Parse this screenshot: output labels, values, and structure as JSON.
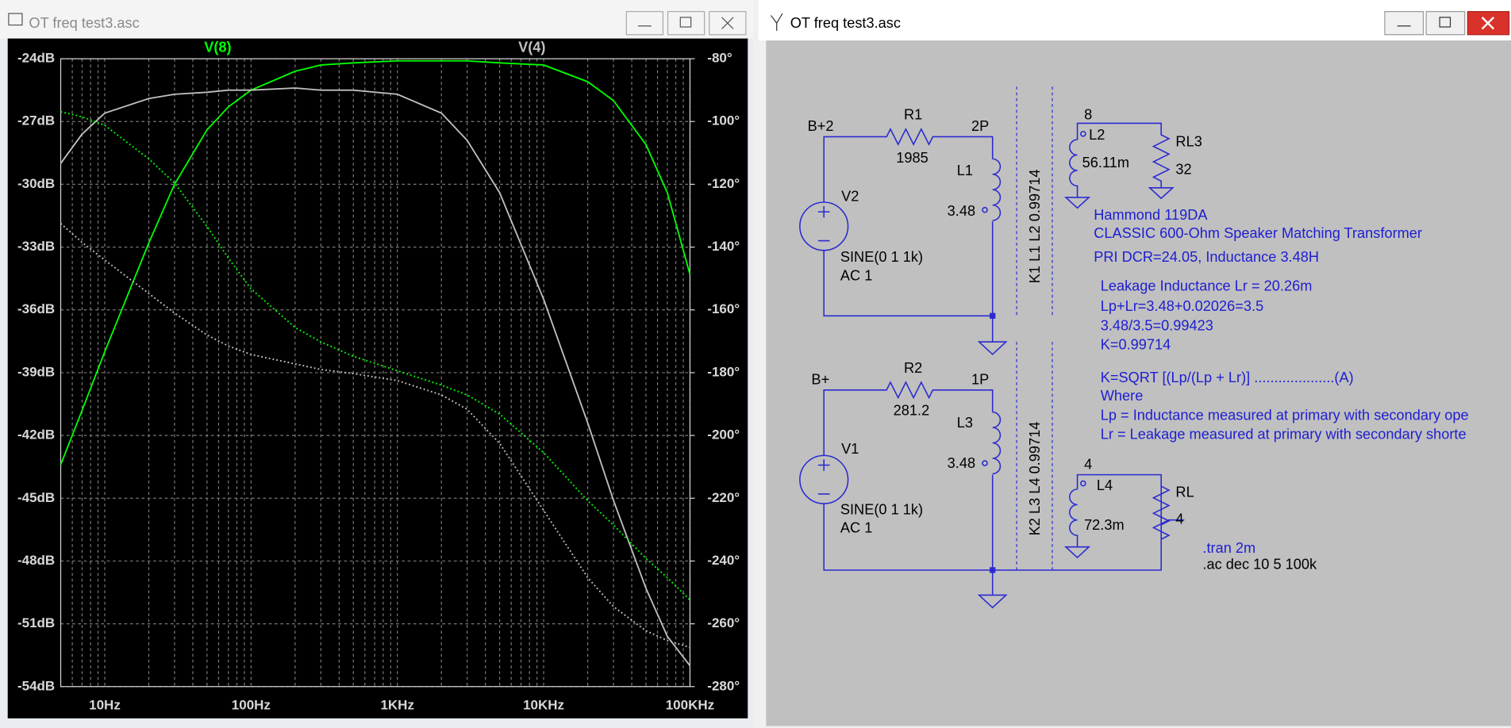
{
  "plot_window": {
    "title": "OT freq test3.asc"
  },
  "chart_data": {
    "type": "line",
    "x": [
      5,
      7,
      10,
      20,
      30,
      50,
      70,
      100,
      200,
      300,
      500,
      1000,
      2000,
      3000,
      5000,
      10000,
      20000,
      30000,
      50000,
      70000,
      100000
    ],
    "xlim": [
      5,
      100000
    ],
    "log_x": true,
    "xticks": [
      {
        "value": 10,
        "label": "10Hz"
      },
      {
        "value": 100,
        "label": "100Hz"
      },
      {
        "value": 1000,
        "label": "1KHz"
      },
      {
        "value": 10000,
        "label": "10KHz"
      },
      {
        "value": 100000,
        "label": "100KHz"
      }
    ],
    "ylim": [
      -54,
      -24
    ],
    "yticks": [
      {
        "value": -24,
        "label": "-24dB"
      },
      {
        "value": -27,
        "label": "-27dB"
      },
      {
        "value": -30,
        "label": "-30dB"
      },
      {
        "value": -33,
        "label": "-33dB"
      },
      {
        "value": -36,
        "label": "-36dB"
      },
      {
        "value": -39,
        "label": "-39dB"
      },
      {
        "value": -42,
        "label": "-42dB"
      },
      {
        "value": -45,
        "label": "-45dB"
      },
      {
        "value": -48,
        "label": "-48dB"
      },
      {
        "value": -51,
        "label": "-51dB"
      },
      {
        "value": -54,
        "label": "-54dB"
      }
    ],
    "y2lim": [
      -280,
      -80
    ],
    "y2ticks": [
      {
        "value": -80,
        "label": "-80°"
      },
      {
        "value": -100,
        "label": "-100°"
      },
      {
        "value": -120,
        "label": "-120°"
      },
      {
        "value": -140,
        "label": "-140°"
      },
      {
        "value": -160,
        "label": "-160°"
      },
      {
        "value": -180,
        "label": "-180°"
      },
      {
        "value": -200,
        "label": "-200°"
      },
      {
        "value": -220,
        "label": "-220°"
      },
      {
        "value": -240,
        "label": "-240°"
      },
      {
        "value": -260,
        "label": "-260°"
      },
      {
        "value": -280,
        "label": "-280°"
      }
    ],
    "grid": true,
    "series": [
      {
        "name": "V(8)",
        "color": "#00ff00",
        "values": [
          -43.4,
          -40.8,
          -38.0,
          -32.8,
          -30.0,
          -27.4,
          -26.3,
          -25.5,
          -24.6,
          -24.3,
          -24.2,
          -24.1,
          -24.1,
          -24.1,
          -24.2,
          -24.3,
          -25.1,
          -26.0,
          -28.1,
          -30.4,
          -34.3
        ]
      },
      {
        "name": "V(4)",
        "color": "#c0c0c0",
        "values": [
          -29.0,
          -27.6,
          -26.6,
          -25.9,
          -25.7,
          -25.6,
          -25.5,
          -25.5,
          -25.4,
          -25.5,
          -25.5,
          -25.7,
          -26.6,
          -27.9,
          -30.4,
          -35.5,
          -41.4,
          -45.1,
          -49.3,
          -51.6,
          -53.0
        ]
      },
      {
        "color": "#00ff00",
        "axis": "y2",
        "line_style": "dotted",
        "values": [
          -96.9,
          -98.5,
          -101.2,
          -111.9,
          -119.6,
          -133.4,
          -143.5,
          -153.3,
          -165.6,
          -170.2,
          -174.8,
          -179.4,
          -184.0,
          -187.1,
          -193.2,
          -205.5,
          -220.8,
          -228.5,
          -239.2,
          -245.3,
          -252.4
        ]
      },
      {
        "color": "#c0c0c0",
        "axis": "y2",
        "line_style": "dotted",
        "values": [
          -132.5,
          -138.5,
          -144.1,
          -154.8,
          -161.0,
          -168.0,
          -171.5,
          -174.2,
          -177.2,
          -179.0,
          -180.3,
          -182.5,
          -187.1,
          -191.7,
          -202.5,
          -223.9,
          -245.3,
          -254.5,
          -262.2,
          -265.3,
          -267.5
        ]
      }
    ]
  },
  "schematic_window": {
    "title": "OT freq test3.asc",
    "texts": [
      "B+2",
      "R1",
      "1985",
      "2P",
      "L1",
      "3.48",
      "V2",
      "SINE(0 1 1k)",
      "AC 1",
      "K1 L1 L2 0.99714",
      "8",
      "L2",
      "56.11m",
      "RL3",
      "32",
      "Hammond 119DA",
      "CLASSIC 600-Ohm Speaker Matching Transformer",
      "PRI DCR=24.05, Inductance 3.48H",
      "Leakage Inductance Lr = 20.26m",
      "Lp+Lr=3.48+0.02026=3.5",
      "3.48/3.5=0.99423",
      "K=0.99714",
      "K=SQRT [(Lp/(Lp + Lr)] ....................(A)",
      "Where",
      "Lp = Inductance measured at primary with secondary ope",
      "Lr = Leakage measured at primary with secondary shorte",
      "B+",
      "R2",
      "281.2",
      "1P",
      "L3",
      "3.48",
      "V1",
      "SINE(0 1 1k)",
      "AC 1",
      "K2 L3 L4 0.99714",
      "4",
      "L4",
      "72.3m",
      "RL",
      "4",
      ".tran 2m",
      ".ac dec 10 5 100k"
    ]
  }
}
